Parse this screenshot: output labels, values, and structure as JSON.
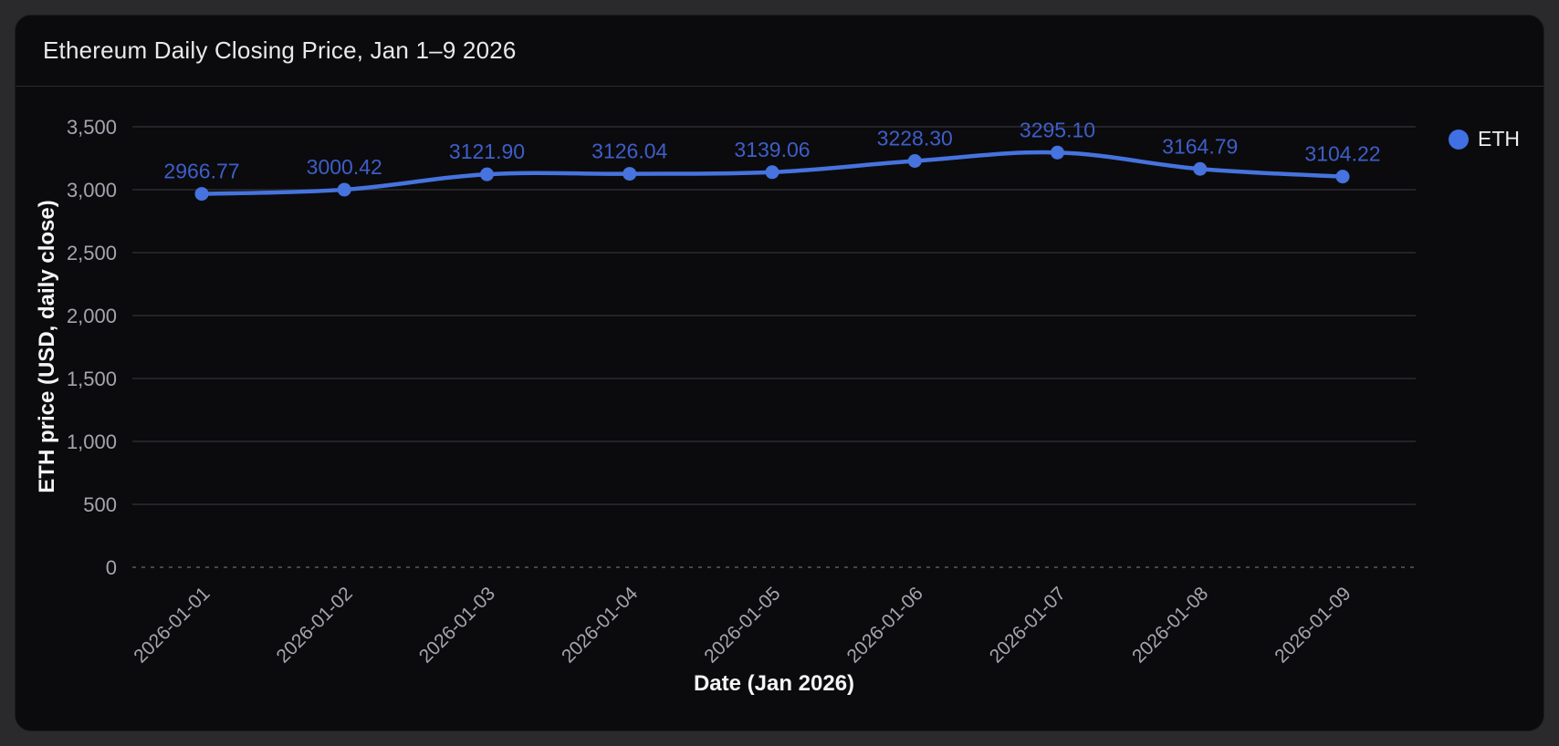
{
  "card": {
    "title": "Ethereum Daily Closing Price, Jan 1–9 2026"
  },
  "legend": {
    "label": "ETH",
    "position": "top-right"
  },
  "colors": {
    "page_bg": "#2a2a2c",
    "card_bg": "#0b0b0d",
    "header_border": "#2c2c30",
    "title_text": "#e9e9ec",
    "axis_title_text": "#f4f4f6",
    "tick_text": "#a5a5ae",
    "grid_line": "#232328",
    "zero_line": "#5a5a61",
    "series_line": "#4673de",
    "point_fill": "#4673de",
    "data_label_text": "#3e5ec9",
    "legend_dot": "#4170e4",
    "legend_text": "#efeff2"
  },
  "chart_data": {
    "type": "line",
    "title": "Ethereum Daily Closing Price, Jan 1–9 2026",
    "xlabel": "Date (Jan 2026)",
    "ylabel": "ETH price (USD, daily close)",
    "x": [
      "2026-01-01",
      "2026-01-02",
      "2026-01-03",
      "2026-01-04",
      "2026-01-05",
      "2026-01-06",
      "2026-01-07",
      "2026-01-08",
      "2026-01-09"
    ],
    "series": [
      {
        "name": "ETH",
        "color": "#4673de",
        "values": [
          2966.77,
          3000.42,
          3121.9,
          3126.04,
          3139.06,
          3228.3,
          3295.1,
          3164.79,
          3104.22
        ]
      }
    ],
    "ylim": [
      0,
      3500
    ],
    "ytick_step": 500,
    "grid": true,
    "x_label_rotation": 45,
    "point_labels_visible": true,
    "legend_position": "top-right"
  }
}
